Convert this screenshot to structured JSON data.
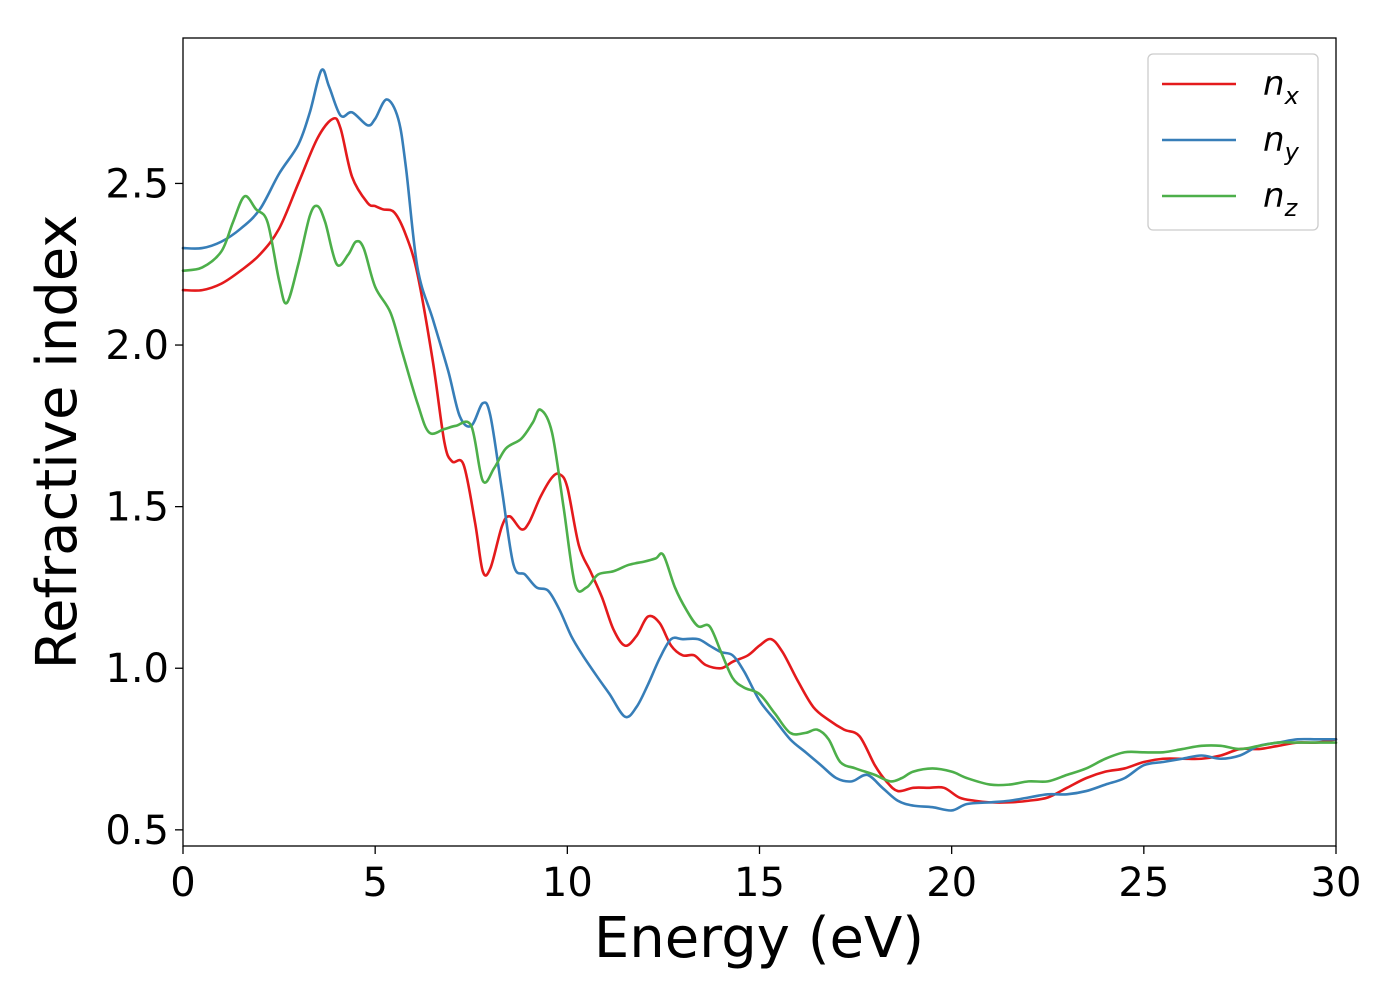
{
  "chart_data": {
    "type": "line",
    "title": "",
    "xlabel": "Energy (eV)",
    "ylabel": "Refractive index",
    "xlim": [
      0,
      30
    ],
    "ylim": [
      0.45,
      2.95
    ],
    "xticks": [
      0,
      5,
      10,
      15,
      20,
      25,
      30
    ],
    "xtick_labels": [
      "0",
      "5",
      "10",
      "15",
      "20",
      "25",
      "30"
    ],
    "yticks": [
      0.5,
      1.0,
      1.5,
      2.0,
      2.5
    ],
    "ytick_labels": [
      "0.5",
      "1.0",
      "1.5",
      "2.0",
      "2.5"
    ],
    "grid": false,
    "legend_position": "top-right",
    "series": [
      {
        "name": "n",
        "sub": "x",
        "color": "#e41a1c",
        "points": [
          [
            0,
            2.17
          ],
          [
            0.5,
            2.17
          ],
          [
            1.0,
            2.19
          ],
          [
            1.5,
            2.23
          ],
          [
            2.0,
            2.28
          ],
          [
            2.5,
            2.36
          ],
          [
            3.0,
            2.5
          ],
          [
            3.5,
            2.64
          ],
          [
            3.9,
            2.7
          ],
          [
            4.1,
            2.67
          ],
          [
            4.4,
            2.52
          ],
          [
            4.8,
            2.44
          ],
          [
            5.0,
            2.43
          ],
          [
            5.2,
            2.42
          ],
          [
            5.5,
            2.41
          ],
          [
            5.8,
            2.34
          ],
          [
            6.1,
            2.22
          ],
          [
            6.5,
            1.95
          ],
          [
            6.8,
            1.7
          ],
          [
            7.0,
            1.64
          ],
          [
            7.3,
            1.63
          ],
          [
            7.6,
            1.45
          ],
          [
            7.8,
            1.3
          ],
          [
            8.0,
            1.31
          ],
          [
            8.3,
            1.44
          ],
          [
            8.5,
            1.47
          ],
          [
            8.8,
            1.43
          ],
          [
            9.0,
            1.45
          ],
          [
            9.3,
            1.53
          ],
          [
            9.6,
            1.59
          ],
          [
            9.8,
            1.6
          ],
          [
            10.0,
            1.56
          ],
          [
            10.3,
            1.38
          ],
          [
            10.6,
            1.3
          ],
          [
            10.9,
            1.22
          ],
          [
            11.2,
            1.12
          ],
          [
            11.5,
            1.07
          ],
          [
            11.8,
            1.1
          ],
          [
            12.1,
            1.16
          ],
          [
            12.4,
            1.14
          ],
          [
            12.7,
            1.07
          ],
          [
            13.0,
            1.04
          ],
          [
            13.3,
            1.04
          ],
          [
            13.6,
            1.01
          ],
          [
            14.0,
            1.0
          ],
          [
            14.3,
            1.02
          ],
          [
            14.7,
            1.04
          ],
          [
            15.0,
            1.07
          ],
          [
            15.3,
            1.09
          ],
          [
            15.6,
            1.05
          ],
          [
            16.0,
            0.96
          ],
          [
            16.4,
            0.88
          ],
          [
            16.8,
            0.84
          ],
          [
            17.2,
            0.81
          ],
          [
            17.6,
            0.79
          ],
          [
            18.0,
            0.7
          ],
          [
            18.3,
            0.65
          ],
          [
            18.6,
            0.62
          ],
          [
            19.0,
            0.63
          ],
          [
            19.4,
            0.63
          ],
          [
            19.8,
            0.63
          ],
          [
            20.2,
            0.6
          ],
          [
            20.6,
            0.59
          ],
          [
            21.0,
            0.585
          ],
          [
            21.5,
            0.585
          ],
          [
            22.0,
            0.59
          ],
          [
            22.5,
            0.6
          ],
          [
            23.0,
            0.63
          ],
          [
            23.5,
            0.66
          ],
          [
            24.0,
            0.68
          ],
          [
            24.5,
            0.69
          ],
          [
            25.0,
            0.71
          ],
          [
            25.5,
            0.72
          ],
          [
            26.0,
            0.72
          ],
          [
            26.5,
            0.72
          ],
          [
            27.0,
            0.73
          ],
          [
            27.5,
            0.75
          ],
          [
            28.0,
            0.75
          ],
          [
            28.5,
            0.76
          ],
          [
            29.0,
            0.77
          ],
          [
            29.5,
            0.77
          ],
          [
            30.0,
            0.78
          ]
        ]
      },
      {
        "name": "n",
        "sub": "y",
        "color": "#377eb8",
        "points": [
          [
            0,
            2.3
          ],
          [
            0.5,
            2.3
          ],
          [
            1.0,
            2.32
          ],
          [
            1.5,
            2.36
          ],
          [
            2.0,
            2.42
          ],
          [
            2.5,
            2.53
          ],
          [
            3.0,
            2.62
          ],
          [
            3.3,
            2.72
          ],
          [
            3.6,
            2.85
          ],
          [
            3.8,
            2.8
          ],
          [
            4.1,
            2.71
          ],
          [
            4.4,
            2.72
          ],
          [
            4.8,
            2.68
          ],
          [
            5.0,
            2.7
          ],
          [
            5.3,
            2.76
          ],
          [
            5.6,
            2.7
          ],
          [
            5.8,
            2.55
          ],
          [
            6.1,
            2.24
          ],
          [
            6.5,
            2.08
          ],
          [
            6.9,
            1.92
          ],
          [
            7.2,
            1.78
          ],
          [
            7.5,
            1.75
          ],
          [
            7.8,
            1.82
          ],
          [
            8.0,
            1.78
          ],
          [
            8.3,
            1.55
          ],
          [
            8.6,
            1.32
          ],
          [
            8.9,
            1.29
          ],
          [
            9.2,
            1.25
          ],
          [
            9.5,
            1.24
          ],
          [
            9.8,
            1.18
          ],
          [
            10.1,
            1.1
          ],
          [
            10.4,
            1.04
          ],
          [
            10.8,
            0.97
          ],
          [
            11.1,
            0.92
          ],
          [
            11.5,
            0.85
          ],
          [
            11.8,
            0.88
          ],
          [
            12.1,
            0.95
          ],
          [
            12.4,
            1.03
          ],
          [
            12.7,
            1.09
          ],
          [
            13.0,
            1.09
          ],
          [
            13.4,
            1.09
          ],
          [
            13.7,
            1.07
          ],
          [
            14.0,
            1.05
          ],
          [
            14.3,
            1.04
          ],
          [
            14.6,
            0.99
          ],
          [
            15.0,
            0.9
          ],
          [
            15.4,
            0.84
          ],
          [
            15.8,
            0.78
          ],
          [
            16.2,
            0.74
          ],
          [
            16.6,
            0.7
          ],
          [
            17.0,
            0.66
          ],
          [
            17.4,
            0.65
          ],
          [
            17.8,
            0.67
          ],
          [
            18.2,
            0.63
          ],
          [
            18.6,
            0.59
          ],
          [
            19.0,
            0.575
          ],
          [
            19.5,
            0.57
          ],
          [
            20.0,
            0.56
          ],
          [
            20.4,
            0.58
          ],
          [
            21.0,
            0.585
          ],
          [
            21.5,
            0.59
          ],
          [
            22.0,
            0.6
          ],
          [
            22.5,
            0.61
          ],
          [
            23.0,
            0.61
          ],
          [
            23.5,
            0.62
          ],
          [
            24.0,
            0.64
          ],
          [
            24.5,
            0.66
          ],
          [
            25.0,
            0.7
          ],
          [
            25.5,
            0.71
          ],
          [
            26.0,
            0.72
          ],
          [
            26.5,
            0.73
          ],
          [
            27.0,
            0.72
          ],
          [
            27.5,
            0.73
          ],
          [
            28.0,
            0.76
          ],
          [
            28.5,
            0.77
          ],
          [
            29.0,
            0.78
          ],
          [
            29.5,
            0.78
          ],
          [
            30.0,
            0.78
          ]
        ]
      },
      {
        "name": "n",
        "sub": "z",
        "color": "#4daf4a",
        "points": [
          [
            0,
            2.23
          ],
          [
            0.5,
            2.24
          ],
          [
            1.0,
            2.29
          ],
          [
            1.3,
            2.38
          ],
          [
            1.6,
            2.46
          ],
          [
            1.9,
            2.42
          ],
          [
            2.2,
            2.38
          ],
          [
            2.5,
            2.2
          ],
          [
            2.7,
            2.13
          ],
          [
            3.0,
            2.25
          ],
          [
            3.3,
            2.4
          ],
          [
            3.5,
            2.43
          ],
          [
            3.7,
            2.38
          ],
          [
            4.0,
            2.25
          ],
          [
            4.3,
            2.28
          ],
          [
            4.5,
            2.32
          ],
          [
            4.7,
            2.3
          ],
          [
            5.0,
            2.18
          ],
          [
            5.4,
            2.1
          ],
          [
            5.7,
            1.98
          ],
          [
            6.1,
            1.82
          ],
          [
            6.4,
            1.73
          ],
          [
            6.8,
            1.74
          ],
          [
            7.1,
            1.75
          ],
          [
            7.5,
            1.75
          ],
          [
            7.8,
            1.58
          ],
          [
            8.1,
            1.62
          ],
          [
            8.4,
            1.68
          ],
          [
            8.8,
            1.71
          ],
          [
            9.1,
            1.76
          ],
          [
            9.3,
            1.8
          ],
          [
            9.6,
            1.73
          ],
          [
            9.9,
            1.5
          ],
          [
            10.2,
            1.26
          ],
          [
            10.5,
            1.25
          ],
          [
            10.8,
            1.29
          ],
          [
            11.2,
            1.3
          ],
          [
            11.6,
            1.32
          ],
          [
            12.0,
            1.33
          ],
          [
            12.3,
            1.34
          ],
          [
            12.5,
            1.35
          ],
          [
            12.8,
            1.25
          ],
          [
            13.1,
            1.18
          ],
          [
            13.4,
            1.13
          ],
          [
            13.7,
            1.13
          ],
          [
            14.0,
            1.05
          ],
          [
            14.3,
            0.97
          ],
          [
            14.6,
            0.94
          ],
          [
            15.0,
            0.92
          ],
          [
            15.4,
            0.86
          ],
          [
            15.8,
            0.8
          ],
          [
            16.2,
            0.8
          ],
          [
            16.5,
            0.81
          ],
          [
            16.8,
            0.78
          ],
          [
            17.1,
            0.71
          ],
          [
            17.5,
            0.69
          ],
          [
            18.0,
            0.67
          ],
          [
            18.4,
            0.65
          ],
          [
            18.7,
            0.66
          ],
          [
            19.0,
            0.68
          ],
          [
            19.5,
            0.69
          ],
          [
            20.0,
            0.68
          ],
          [
            20.4,
            0.66
          ],
          [
            21.0,
            0.64
          ],
          [
            21.5,
            0.64
          ],
          [
            22.0,
            0.65
          ],
          [
            22.5,
            0.65
          ],
          [
            23.0,
            0.67
          ],
          [
            23.5,
            0.69
          ],
          [
            24.0,
            0.72
          ],
          [
            24.5,
            0.74
          ],
          [
            25.0,
            0.74
          ],
          [
            25.5,
            0.74
          ],
          [
            26.0,
            0.75
          ],
          [
            26.5,
            0.76
          ],
          [
            27.0,
            0.76
          ],
          [
            27.5,
            0.75
          ],
          [
            28.0,
            0.76
          ],
          [
            28.5,
            0.77
          ],
          [
            29.0,
            0.77
          ],
          [
            29.5,
            0.77
          ],
          [
            30.0,
            0.77
          ]
        ]
      }
    ]
  }
}
